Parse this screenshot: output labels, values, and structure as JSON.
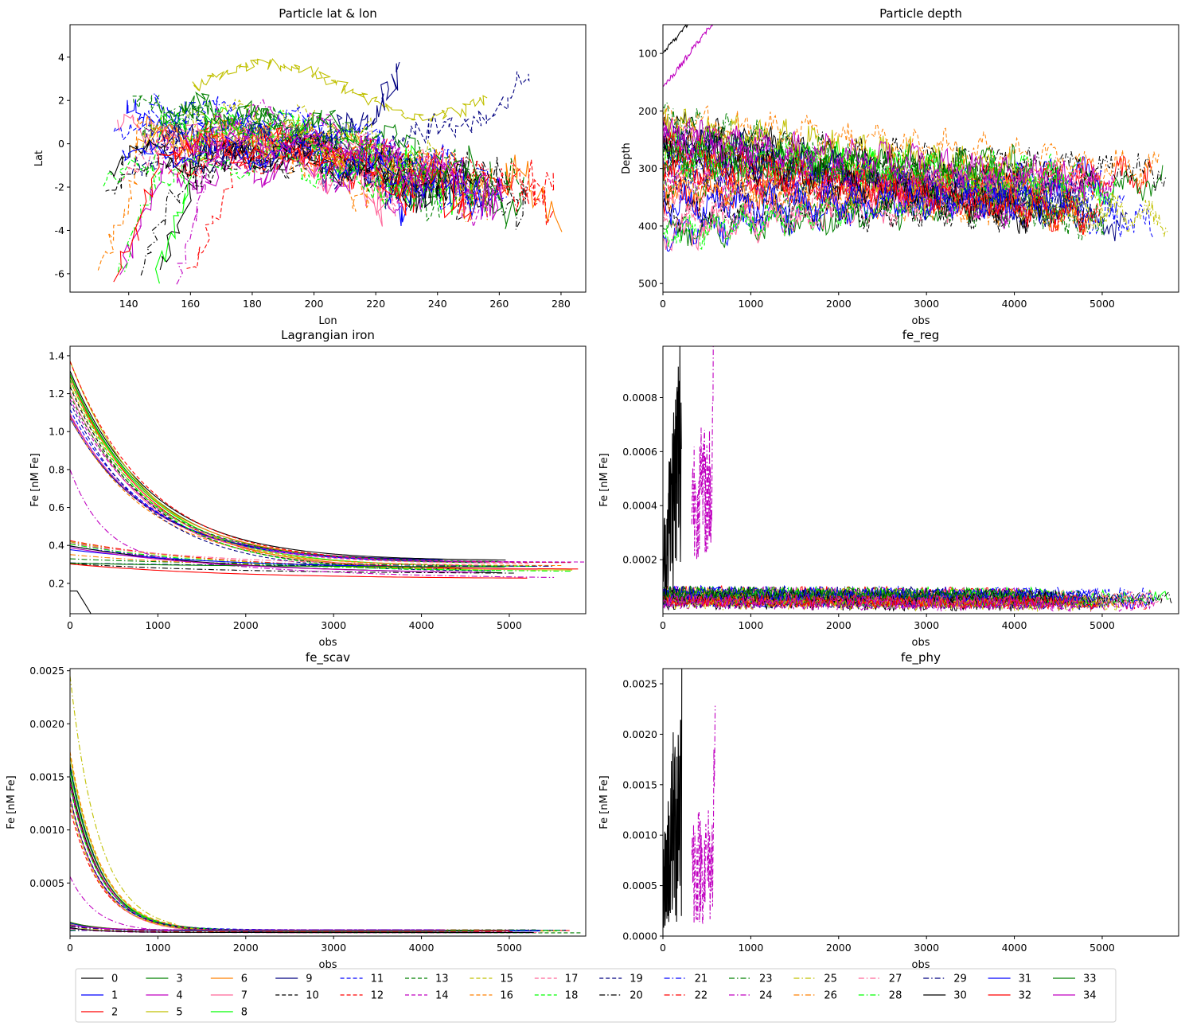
{
  "figure": {
    "width": 1489,
    "height": 1294
  },
  "chart_data": [
    {
      "id": "latlon",
      "type": "line",
      "title": "Particle lat & lon",
      "xlabel": "Lon",
      "ylabel": "Lat",
      "xlim": [
        121,
        288
      ],
      "ylim": [
        -6.85,
        5.5
      ],
      "xticks": [
        140,
        160,
        180,
        200,
        220,
        240,
        260,
        280
      ],
      "yticks": [
        4,
        2,
        0,
        -2,
        -4,
        -6
      ],
      "invert_y": false,
      "grid": false,
      "description_points": {
        "lon_range": [
          128,
          281
        ],
        "lat_range": [
          -6.3,
          5.0
        ]
      }
    },
    {
      "id": "depth",
      "type": "line",
      "title": "Particle depth",
      "xlabel": "obs",
      "ylabel": "Depth",
      "xlim": [
        0,
        5870
      ],
      "ylim": [
        50,
        515
      ],
      "invert_y": true,
      "xticks": [
        0,
        1000,
        2000,
        3000,
        4000,
        5000
      ],
      "yticks": [
        100,
        200,
        300,
        400,
        500
      ],
      "grid": false,
      "depth_band_at_start": [
        200,
        420
      ],
      "depth_band_at_end": [
        290,
        400
      ]
    },
    {
      "id": "iron",
      "type": "line",
      "title": "Lagrangian iron",
      "xlabel": "obs",
      "ylabel": "Fe [nM Fe]",
      "xlim": [
        0,
        5870
      ],
      "ylim": [
        0.04,
        1.45
      ],
      "xticks": [
        0,
        1000,
        2000,
        3000,
        4000,
        5000
      ],
      "yticks": [
        0.2,
        0.4,
        0.6,
        0.8,
        1.0,
        1.2,
        1.4
      ],
      "ytick_labels": [
        "0.2",
        "0.4",
        "0.6",
        "0.8",
        "1.0",
        "1.2",
        "1.4"
      ],
      "grid": false,
      "initial_values_high": [
        1.1,
        1.15,
        1.2,
        1.25,
        1.4
      ],
      "initial_values_low": [
        0.3,
        0.33,
        0.38,
        0.42
      ],
      "final_value_approx": 0.29
    },
    {
      "id": "fe_reg",
      "type": "line",
      "title": "fe_reg",
      "xlabel": "obs",
      "ylabel": "Fe [nM Fe]",
      "xlim": [
        0,
        5870
      ],
      "ylim": [
        0.0,
        0.00099
      ],
      "xticks": [
        0,
        1000,
        2000,
        3000,
        4000,
        5000
      ],
      "yticks": [
        0.0002,
        0.0004,
        0.0006,
        0.0008
      ],
      "ytick_labels": [
        "0.0002",
        "0.0004",
        "0.0006",
        "0.0008"
      ],
      "grid": false,
      "band_value_approx": [
        3e-05,
        0.0001
      ]
    },
    {
      "id": "fe_scav",
      "type": "line",
      "title": "fe_scav",
      "xlabel": "obs",
      "ylabel": "Fe [nM Fe]",
      "xlim": [
        0,
        5870
      ],
      "ylim": [
        0.0,
        0.00252
      ],
      "xticks": [
        0,
        1000,
        2000,
        3000,
        4000,
        5000
      ],
      "yticks": [
        0.0005,
        0.001,
        0.0015,
        0.002,
        0.0025
      ],
      "ytick_labels": [
        "0.0005",
        "0.0010",
        "0.0015",
        "0.0020",
        "0.0025"
      ],
      "grid": false,
      "initial_values_high": [
        0.0012,
        0.0014,
        0.0016,
        0.0018,
        0.0024
      ],
      "final_value_approx": 5e-05
    },
    {
      "id": "fe_phy",
      "type": "line",
      "title": "fe_phy",
      "xlabel": "obs",
      "ylabel": "Fe [nM Fe]",
      "xlim": [
        0,
        5870
      ],
      "ylim": [
        0.0,
        0.00265
      ],
      "xticks": [
        0,
        1000,
        2000,
        3000,
        4000,
        5000
      ],
      "yticks": [
        0.0,
        0.0005,
        0.001,
        0.0015,
        0.002,
        0.0025
      ],
      "ytick_labels": [
        "0.0000",
        "0.0005",
        "0.0010",
        "0.0015",
        "0.0020",
        "0.0025"
      ],
      "grid": false,
      "baseline_value": 0.0
    }
  ],
  "legend": {
    "placement": "bottom",
    "ncol": 16,
    "entries": [
      {
        "label": "0",
        "color": "#000000",
        "dash": "solid"
      },
      {
        "label": "1",
        "color": "#0000ff",
        "dash": "solid"
      },
      {
        "label": "2",
        "color": "#ff0000",
        "dash": "solid"
      },
      {
        "label": "3",
        "color": "#008000",
        "dash": "solid"
      },
      {
        "label": "4",
        "color": "#c000c0",
        "dash": "solid"
      },
      {
        "label": "5",
        "color": "#c0c000",
        "dash": "solid"
      },
      {
        "label": "6",
        "color": "#ff8000",
        "dash": "solid"
      },
      {
        "label": "7",
        "color": "#ff6699",
        "dash": "solid"
      },
      {
        "label": "8",
        "color": "#00ff00",
        "dash": "solid"
      },
      {
        "label": "9",
        "color": "#000080",
        "dash": "solid"
      },
      {
        "label": "10",
        "color": "#000000",
        "dash": "dashed"
      },
      {
        "label": "11",
        "color": "#0000ff",
        "dash": "dashed"
      },
      {
        "label": "12",
        "color": "#ff0000",
        "dash": "dashed"
      },
      {
        "label": "13",
        "color": "#008000",
        "dash": "dashed"
      },
      {
        "label": "14",
        "color": "#c000c0",
        "dash": "dashed"
      },
      {
        "label": "15",
        "color": "#c0c000",
        "dash": "dashed"
      },
      {
        "label": "16",
        "color": "#ff8000",
        "dash": "dashed"
      },
      {
        "label": "17",
        "color": "#ff6699",
        "dash": "dashed"
      },
      {
        "label": "18",
        "color": "#00ff00",
        "dash": "dashed"
      },
      {
        "label": "19",
        "color": "#000080",
        "dash": "dashed"
      },
      {
        "label": "20",
        "color": "#000000",
        "dash": "dashdot"
      },
      {
        "label": "21",
        "color": "#0000ff",
        "dash": "dashdot"
      },
      {
        "label": "22",
        "color": "#ff0000",
        "dash": "dashdot"
      },
      {
        "label": "23",
        "color": "#008000",
        "dash": "dashdot"
      },
      {
        "label": "24",
        "color": "#c000c0",
        "dash": "dashdot"
      },
      {
        "label": "25",
        "color": "#c0c000",
        "dash": "dashdot"
      },
      {
        "label": "26",
        "color": "#ff8000",
        "dash": "dashdot"
      },
      {
        "label": "27",
        "color": "#ff6699",
        "dash": "dashdot"
      },
      {
        "label": "28",
        "color": "#00ff00",
        "dash": "dashdot"
      },
      {
        "label": "29",
        "color": "#000080",
        "dash": "dashdot"
      },
      {
        "label": "30",
        "color": "#000000",
        "dash": "solid"
      },
      {
        "label": "31",
        "color": "#0000ff",
        "dash": "solid"
      },
      {
        "label": "32",
        "color": "#ff0000",
        "dash": "solid"
      },
      {
        "label": "33",
        "color": "#008000",
        "dash": "solid"
      },
      {
        "label": "34",
        "color": "#c000c0",
        "dash": "solid"
      }
    ]
  }
}
